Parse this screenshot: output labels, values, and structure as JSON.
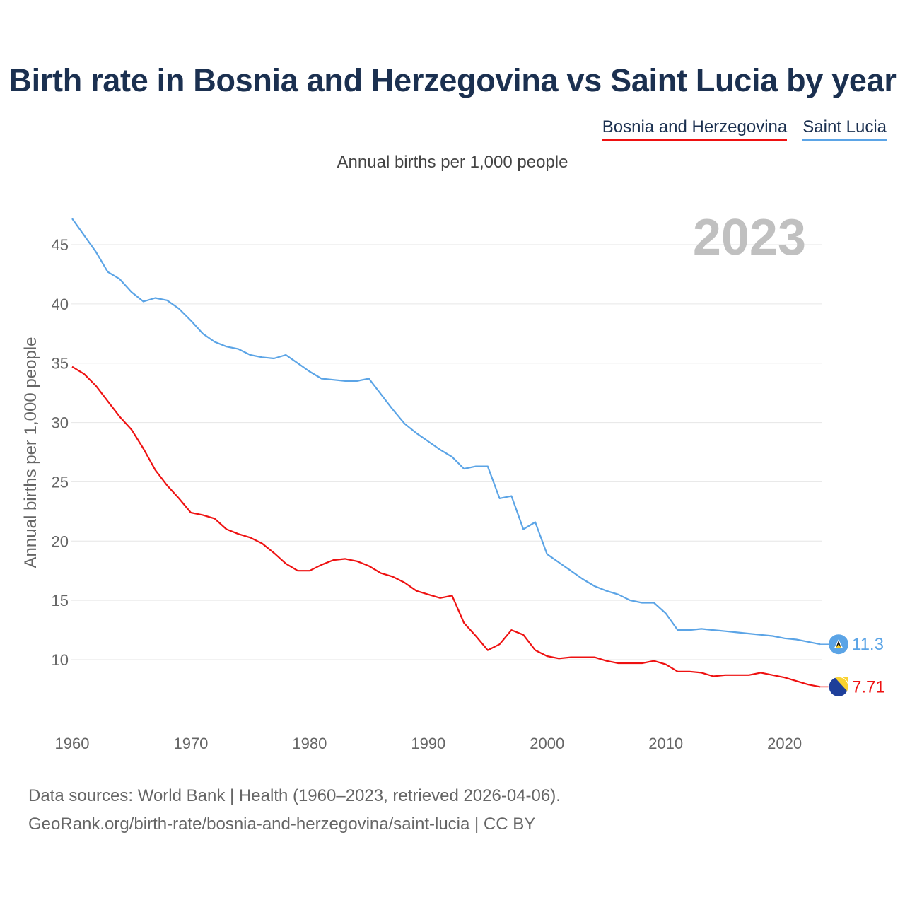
{
  "header": {
    "title": "Birth rate in Bosnia and Herzegovina vs Saint Lucia by year",
    "subtitle": "Annual births per 1,000 people"
  },
  "legend": {
    "items": [
      {
        "label": "Bosnia and Herzegovina",
        "color": "#ee1111"
      },
      {
        "label": "Saint Lucia",
        "color": "#5ba4e6"
      }
    ]
  },
  "footer": {
    "line1": "Data sources: World Bank | Health (1960–2023, retrieved 2026-04-06).",
    "line2": "GeoRank.org/birth-rate/bosnia-and-herzegovina/saint-lucia | CC BY"
  },
  "chart_data": {
    "type": "line",
    "title": "Birth rate in Bosnia and Herzegovina vs Saint Lucia by year",
    "xlabel": "",
    "ylabel": "Annual births per 1,000 people",
    "xlim": [
      1960,
      2023
    ],
    "ylim": [
      5,
      48
    ],
    "x_ticks": [
      1960,
      1970,
      1980,
      1990,
      2000,
      2010,
      2020
    ],
    "y_ticks": [
      10,
      15,
      20,
      25,
      30,
      35,
      40,
      45
    ],
    "current_year": "2023",
    "x": [
      1960,
      1961,
      1962,
      1963,
      1964,
      1965,
      1966,
      1967,
      1968,
      1969,
      1970,
      1971,
      1972,
      1973,
      1974,
      1975,
      1976,
      1977,
      1978,
      1979,
      1980,
      1981,
      1982,
      1983,
      1984,
      1985,
      1986,
      1987,
      1988,
      1989,
      1990,
      1991,
      1992,
      1993,
      1994,
      1995,
      1996,
      1997,
      1998,
      1999,
      2000,
      2001,
      2002,
      2003,
      2004,
      2005,
      2006,
      2007,
      2008,
      2009,
      2010,
      2011,
      2012,
      2013,
      2014,
      2015,
      2016,
      2017,
      2018,
      2019,
      2020,
      2021,
      2022,
      2023
    ],
    "series": [
      {
        "name": "Bosnia and Herzegovina",
        "color": "#ee1111",
        "end_label": "7.71",
        "flag_icon": "bosnia-flag-icon",
        "values": [
          34.7,
          34.1,
          33.1,
          31.8,
          30.5,
          29.4,
          27.8,
          26.0,
          24.7,
          23.6,
          22.4,
          22.2,
          21.9,
          21.0,
          20.6,
          20.3,
          19.8,
          19.0,
          18.1,
          17.5,
          17.5,
          18.0,
          18.4,
          18.5,
          18.3,
          17.9,
          17.3,
          17.0,
          16.5,
          15.8,
          15.5,
          15.2,
          15.4,
          13.1,
          12.0,
          10.8,
          11.3,
          12.5,
          12.1,
          10.8,
          10.3,
          10.1,
          10.2,
          10.2,
          10.2,
          9.9,
          9.7,
          9.7,
          9.7,
          9.9,
          9.6,
          9.0,
          9.0,
          8.9,
          8.6,
          8.7,
          8.7,
          8.7,
          8.9,
          8.7,
          8.5,
          8.2,
          7.9,
          7.71
        ]
      },
      {
        "name": "Saint Lucia",
        "color": "#5ba4e6",
        "end_label": "11.3",
        "flag_icon": "saint-lucia-flag-icon",
        "values": [
          47.2,
          45.8,
          44.4,
          42.7,
          42.1,
          41.0,
          40.2,
          40.5,
          40.3,
          39.6,
          38.6,
          37.5,
          36.8,
          36.4,
          36.2,
          35.7,
          35.5,
          35.4,
          35.7,
          35.0,
          34.3,
          33.7,
          33.6,
          33.5,
          33.5,
          33.7,
          32.4,
          31.1,
          29.9,
          29.1,
          28.4,
          27.7,
          27.1,
          26.1,
          26.3,
          26.3,
          23.6,
          23.8,
          21.0,
          21.6,
          18.9,
          18.2,
          17.5,
          16.8,
          16.2,
          15.8,
          15.5,
          15.0,
          14.8,
          14.8,
          13.9,
          12.5,
          12.5,
          12.6,
          12.5,
          12.4,
          12.3,
          12.2,
          12.1,
          12.0,
          11.8,
          11.7,
          11.5,
          11.3
        ]
      }
    ]
  }
}
